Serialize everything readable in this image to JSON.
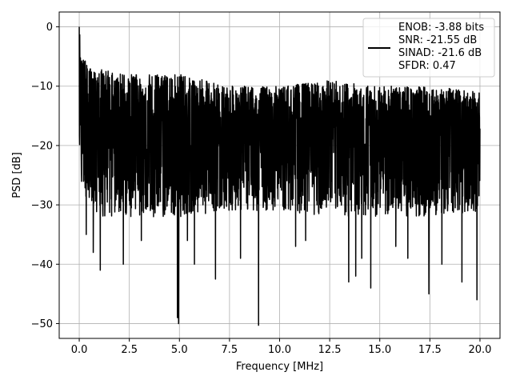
{
  "chart_data": {
    "type": "line",
    "title": "",
    "xlabel": "Frequency [MHz]",
    "ylabel": "PSD [dB]",
    "xlim": [
      -1.0,
      21.0
    ],
    "ylim": [
      -52.5,
      2.5
    ],
    "xticks": [
      0.0,
      2.5,
      5.0,
      7.5,
      10.0,
      12.5,
      15.0,
      17.5,
      20.0
    ],
    "xtick_labels": [
      "0.0",
      "2.5",
      "5.0",
      "7.5",
      "10.0",
      "12.5",
      "15.0",
      "17.5",
      "20.0"
    ],
    "yticks": [
      0,
      -10,
      -20,
      -30,
      -40,
      -50
    ],
    "ytick_labels": [
      "0",
      "−10",
      "−20",
      "−30",
      "−40",
      "−50"
    ],
    "grid": true,
    "legend_position": "top-right",
    "legend": [
      "ENOB: -3.88 bits",
      "SNR: -21.55 dB",
      "SINAD: -21.6 dB",
      "SFDR: 0.47"
    ],
    "series": [
      {
        "color": "#000000",
        "noise_floor_envelope": {
          "x": [
            0.0,
            0.02,
            0.05,
            0.1,
            0.2,
            0.5,
            1.0,
            2.5,
            5.0,
            7.5,
            10.0,
            12.5,
            15.0,
            17.5,
            20.0
          ],
          "upper": [
            0,
            -1,
            -2,
            -4,
            -5,
            -7,
            -7,
            -8,
            -8,
            -10,
            -10,
            -9,
            -10,
            -10,
            -11
          ],
          "typical": [
            -16,
            -15,
            -14,
            -15,
            -16,
            -17,
            -18,
            -18,
            -18,
            -18,
            -18,
            -18,
            -18,
            -18,
            -18
          ],
          "lower": [
            -20,
            -22,
            -24,
            -26,
            -28,
            -30,
            -32,
            -32,
            -32,
            -31,
            -31,
            -32,
            -32,
            -32,
            -31
          ]
        },
        "deep_nulls": [
          {
            "x": 0.35,
            "y": -35.0
          },
          {
            "x": 0.7,
            "y": -38.0
          },
          {
            "x": 1.05,
            "y": -41.0
          },
          {
            "x": 2.2,
            "y": -40.0
          },
          {
            "x": 3.1,
            "y": -36.0
          },
          {
            "x": 4.9,
            "y": -49.0
          },
          {
            "x": 4.96,
            "y": -50.0
          },
          {
            "x": 5.4,
            "y": -36.0
          },
          {
            "x": 5.75,
            "y": -40.0
          },
          {
            "x": 6.8,
            "y": -42.5
          },
          {
            "x": 8.05,
            "y": -39.0
          },
          {
            "x": 8.95,
            "y": -50.3
          },
          {
            "x": 10.8,
            "y": -37.0
          },
          {
            "x": 11.3,
            "y": -36.0
          },
          {
            "x": 13.45,
            "y": -43.0
          },
          {
            "x": 13.8,
            "y": -42.0
          },
          {
            "x": 14.1,
            "y": -39.0
          },
          {
            "x": 14.55,
            "y": -44.0
          },
          {
            "x": 15.8,
            "y": -37.0
          },
          {
            "x": 16.4,
            "y": -39.0
          },
          {
            "x": 17.45,
            "y": -45.0
          },
          {
            "x": 18.1,
            "y": -40.0
          },
          {
            "x": 19.1,
            "y": -43.0
          },
          {
            "x": 19.85,
            "y": -46.0
          }
        ]
      }
    ]
  }
}
